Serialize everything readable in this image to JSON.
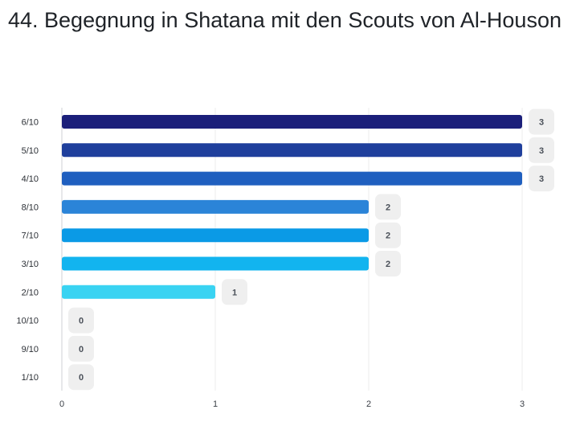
{
  "title": "44. Begegnung in Shatana mit den Scouts von Al-Houson",
  "chart_data": {
    "type": "bar",
    "orientation": "horizontal",
    "title": "44. Begegnung in Shatana mit den Scouts von Al-Houson",
    "categories": [
      "6/10",
      "5/10",
      "4/10",
      "8/10",
      "7/10",
      "3/10",
      "2/10",
      "10/10",
      "9/10",
      "1/10"
    ],
    "values": [
      3,
      3,
      3,
      2,
      2,
      2,
      1,
      0,
      0,
      0
    ],
    "bar_colors": [
      "#1b1f7a",
      "#1f3f9c",
      "#1f5fbf",
      "#2b84d8",
      "#0a9ae6",
      "#12b4ef",
      "#39d3f2",
      "#39d3f2",
      "#39d3f2",
      "#39d3f2"
    ],
    "xlim": [
      0,
      3
    ],
    "xticks": [
      "0",
      "1",
      "2",
      "3"
    ],
    "xlabel": "",
    "ylabel": "",
    "grid": true,
    "data_labels": true,
    "legend": "none"
  }
}
